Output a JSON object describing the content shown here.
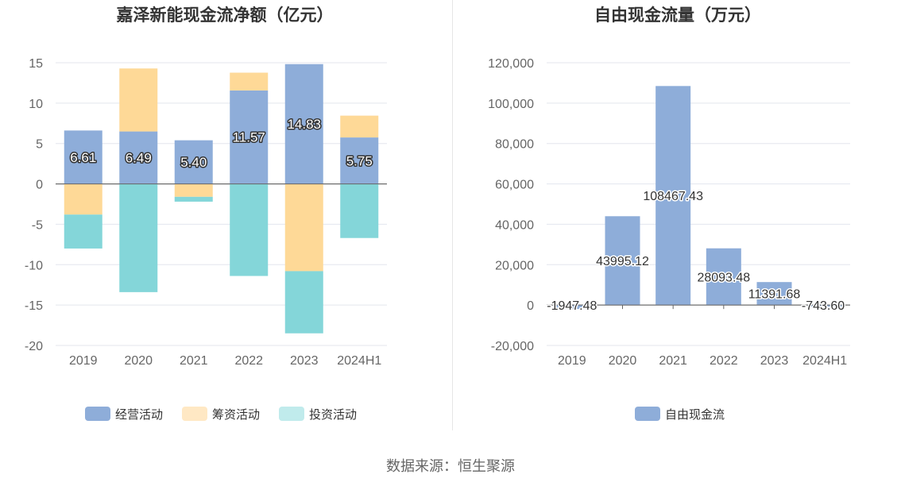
{
  "source": "数据来源：恒生聚源",
  "chart_data": [
    {
      "type": "bar",
      "title": "嘉泽新能现金流净额（亿元）",
      "categories": [
        "2019",
        "2020",
        "2021",
        "2022",
        "2023",
        "2024H1"
      ],
      "stacked": true,
      "ylim": [
        -20,
        15
      ],
      "yticks": [
        -20,
        -15,
        -10,
        -5,
        0,
        5,
        10,
        15
      ],
      "legend_position": "bottom",
      "grid": true,
      "series": [
        {
          "name": "经营活动",
          "color": "#8eadd9",
          "legend_color": "#8eadd9",
          "values": [
            6.61,
            6.49,
            5.4,
            11.57,
            14.83,
            5.75
          ],
          "labels": [
            "6.61",
            "6.49",
            "5.40",
            "11.57",
            "14.83",
            "5.75"
          ]
        },
        {
          "name": "筹资活动",
          "color": "#fed997",
          "legend_color": "#ffe8c4",
          "values": [
            -3.8,
            7.8,
            -1.6,
            2.2,
            -10.8,
            2.7
          ]
        },
        {
          "name": "投资活动",
          "color": "#84d6d9",
          "legend_color": "#c0ebec",
          "values": [
            -4.2,
            -13.4,
            -0.6,
            -11.4,
            -7.7,
            -6.7
          ]
        }
      ]
    },
    {
      "type": "bar",
      "title": "自由现金流量（万元）",
      "categories": [
        "2019",
        "2020",
        "2021",
        "2022",
        "2023",
        "2024H1"
      ],
      "ylim": [
        -20000,
        120000
      ],
      "yticks": [
        -20000,
        0,
        20000,
        40000,
        60000,
        80000,
        100000,
        120000
      ],
      "ytick_labels": [
        "-20,000",
        "0",
        "20,000",
        "40,000",
        "60,000",
        "80,000",
        "100,000",
        "120,000"
      ],
      "legend_position": "bottom",
      "grid": true,
      "series": [
        {
          "name": "自由现金流",
          "color": "#8eadd9",
          "values": [
            -1947.48,
            43995.12,
            108467.43,
            28093.48,
            11391.68,
            -743.6
          ],
          "labels": [
            "-1947.48",
            "43995.12",
            "108467.43",
            "28093.48",
            "11391.68",
            "-743.60"
          ]
        }
      ]
    }
  ]
}
